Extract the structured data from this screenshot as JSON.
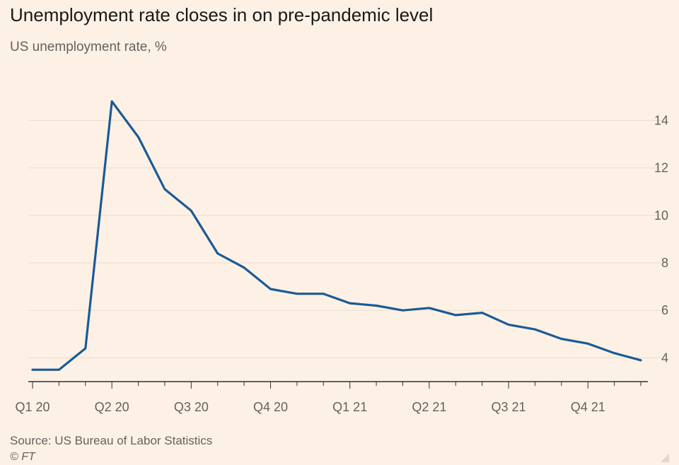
{
  "title": "Unemployment rate closes in on pre-pandemic level",
  "subtitle": "US unemployment rate, %",
  "source": "Source: US Bureau of Labor Statistics",
  "credit": "© FT",
  "colors": {
    "background": "#fdf1e6",
    "line": "#1c5a96",
    "grid": "#e9ddd2",
    "axis": "#33302e"
  },
  "chart_data": {
    "type": "line",
    "title": "Unemployment rate closes in on pre-pandemic level",
    "subtitle": "US unemployment rate, %",
    "x": [
      "2020-01",
      "2020-02",
      "2020-03",
      "2020-04",
      "2020-05",
      "2020-06",
      "2020-07",
      "2020-08",
      "2020-09",
      "2020-10",
      "2020-11",
      "2020-12",
      "2021-01",
      "2021-02",
      "2021-03",
      "2021-04",
      "2021-05",
      "2021-06",
      "2021-07",
      "2021-08",
      "2021-09",
      "2021-10",
      "2021-11",
      "2021-12"
    ],
    "series": [
      {
        "values": [
          3.5,
          3.5,
          4.4,
          14.8,
          13.3,
          11.1,
          10.2,
          8.4,
          7.8,
          6.9,
          6.7,
          6.7,
          6.3,
          6.2,
          6.0,
          6.1,
          5.8,
          5.9,
          5.4,
          5.2,
          4.8,
          4.6,
          4.2,
          3.9
        ]
      }
    ],
    "x_tick_labels": [
      "Q1 20",
      "Q2 20",
      "Q3 20",
      "Q4 20",
      "Q1 21",
      "Q2 21",
      "Q3 21",
      "Q4 21"
    ],
    "y_ticks": [
      4,
      6,
      8,
      10,
      12,
      14
    ],
    "ylim": [
      3,
      15.5
    ],
    "y_axis_side": "right",
    "grid": true
  }
}
